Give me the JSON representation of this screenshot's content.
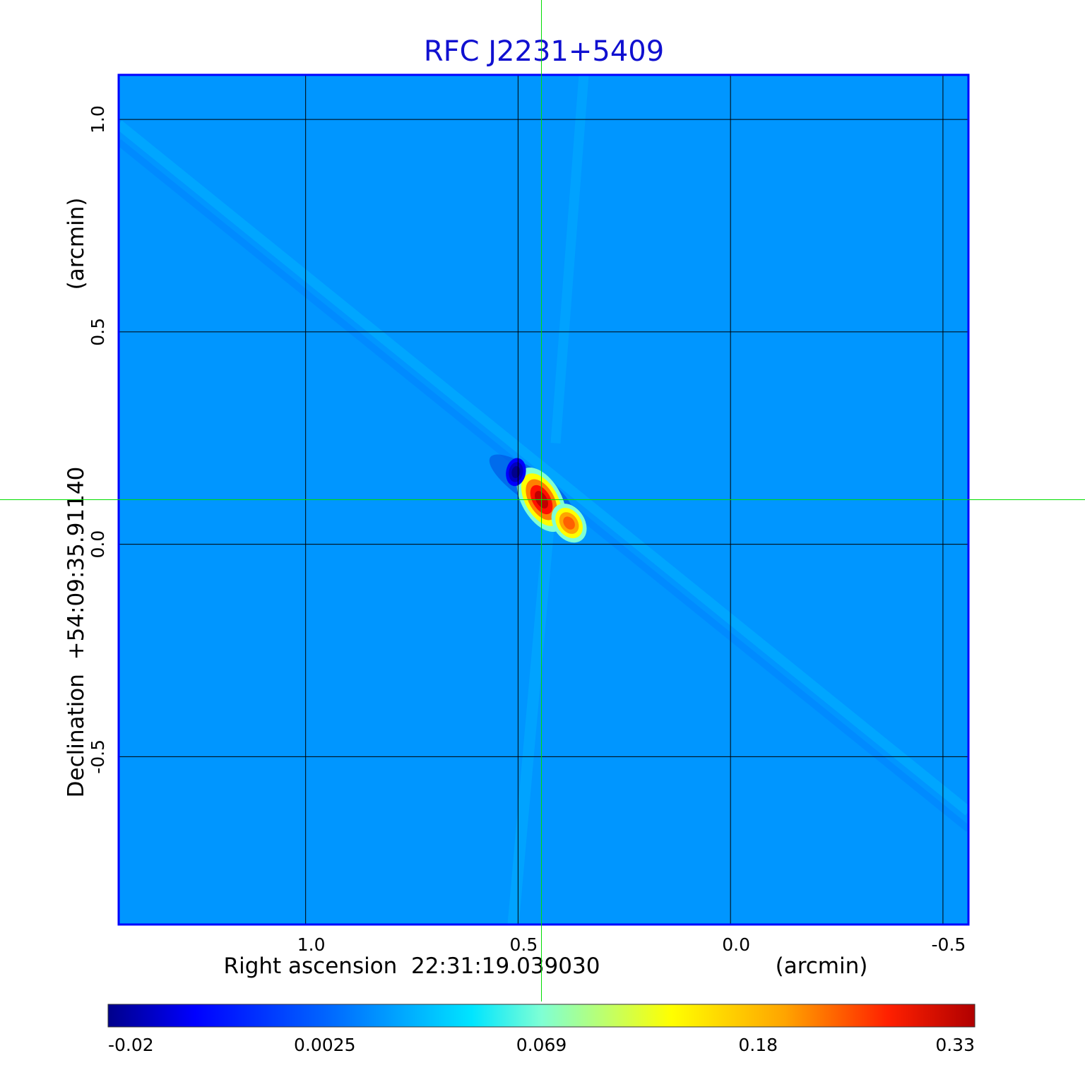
{
  "chart_data": {
    "type": "heatmap",
    "title": "RFC J2231+5409",
    "xlabel": "Right ascension  22:31:19.039030",
    "xunit": "(arcmin)",
    "ylabel": "Declination  +54:09:35.91140",
    "yunit": "(arcmin)",
    "xlim": [
      1.44,
      -0.56
    ],
    "ylim": [
      -0.895,
      1.105
    ],
    "xticks": [
      1.0,
      0.5,
      0.0,
      -0.5
    ],
    "xtick_labels": [
      "1.0",
      "0.5",
      "0.0",
      "-0.5"
    ],
    "yticks": [
      1.0,
      0.5,
      0.0,
      -0.5
    ],
    "ytick_labels": [
      "1.0",
      "0.5",
      "0.0",
      "-0.5"
    ],
    "grid": true,
    "crosshair": {
      "x": 0.445,
      "y": 0.105
    },
    "colorbar": {
      "position": "bottom",
      "tick_labels": [
        "-0.02",
        "0.0025",
        "0.069",
        "0.18",
        "0.33"
      ],
      "min": -0.02,
      "max": 0.33
    },
    "source_components": [
      {
        "x": 0.445,
        "y": 0.105,
        "peak": 0.33
      },
      {
        "x": 0.38,
        "y": 0.05,
        "peak": 0.22
      },
      {
        "x": 0.505,
        "y": 0.17,
        "peak": -0.02
      }
    ],
    "colors": {
      "title": "#1010d0",
      "frame": "#0000ff",
      "background": "#0096ff",
      "grid": "#000000",
      "crosshair": "#00dd00"
    }
  }
}
